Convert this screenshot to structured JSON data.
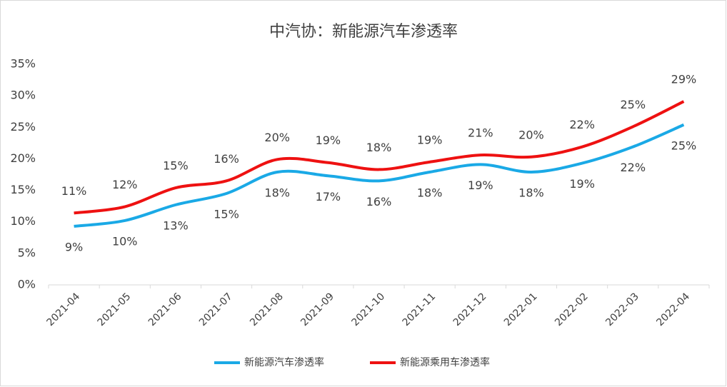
{
  "chart_data": {
    "type": "line",
    "title": "中汽协：新能源汽车渗透率",
    "categories": [
      "2021-04",
      "2021-05",
      "2021-06",
      "2021-07",
      "2021-08",
      "2021-09",
      "2021-10",
      "2021-11",
      "2021-12",
      "2022-01",
      "2022-02",
      "2022-03",
      "2022-04"
    ],
    "series": [
      {
        "name": "新能源汽车渗透率",
        "color": "#1aa9e6",
        "values": [
          9.3,
          10.2,
          12.7,
          14.5,
          17.9,
          17.3,
          16.5,
          17.9,
          19.1,
          17.9,
          19.3,
          21.9,
          25.4
        ],
        "value_labels": [
          "9%",
          "10%",
          "13%",
          "15%",
          "18%",
          "17%",
          "16%",
          "18%",
          "19%",
          "18%",
          "19%",
          "22%",
          "25%"
        ]
      },
      {
        "name": "新能源乘用车渗透率",
        "color": "#ee1111",
        "values": [
          11.4,
          12.4,
          15.4,
          16.5,
          19.9,
          19.4,
          18.3,
          19.5,
          20.6,
          20.3,
          21.9,
          25.1,
          29.1
        ],
        "value_labels": [
          "11%",
          "12%",
          "15%",
          "16%",
          "20%",
          "19%",
          "18%",
          "19%",
          "21%",
          "20%",
          "22%",
          "25%",
          "29%"
        ]
      }
    ],
    "ylim": [
      0,
      35
    ],
    "yticks": [
      {
        "value": 0,
        "label": "0%"
      },
      {
        "value": 5,
        "label": "5%"
      },
      {
        "value": 10,
        "label": "10%"
      },
      {
        "value": 15,
        "label": "15%"
      },
      {
        "value": 20,
        "label": "20%"
      },
      {
        "value": 25,
        "label": "25%"
      },
      {
        "value": 30,
        "label": "30%"
      },
      {
        "value": 35,
        "label": "35%"
      }
    ],
    "legend": "bottom",
    "grid": false
  }
}
